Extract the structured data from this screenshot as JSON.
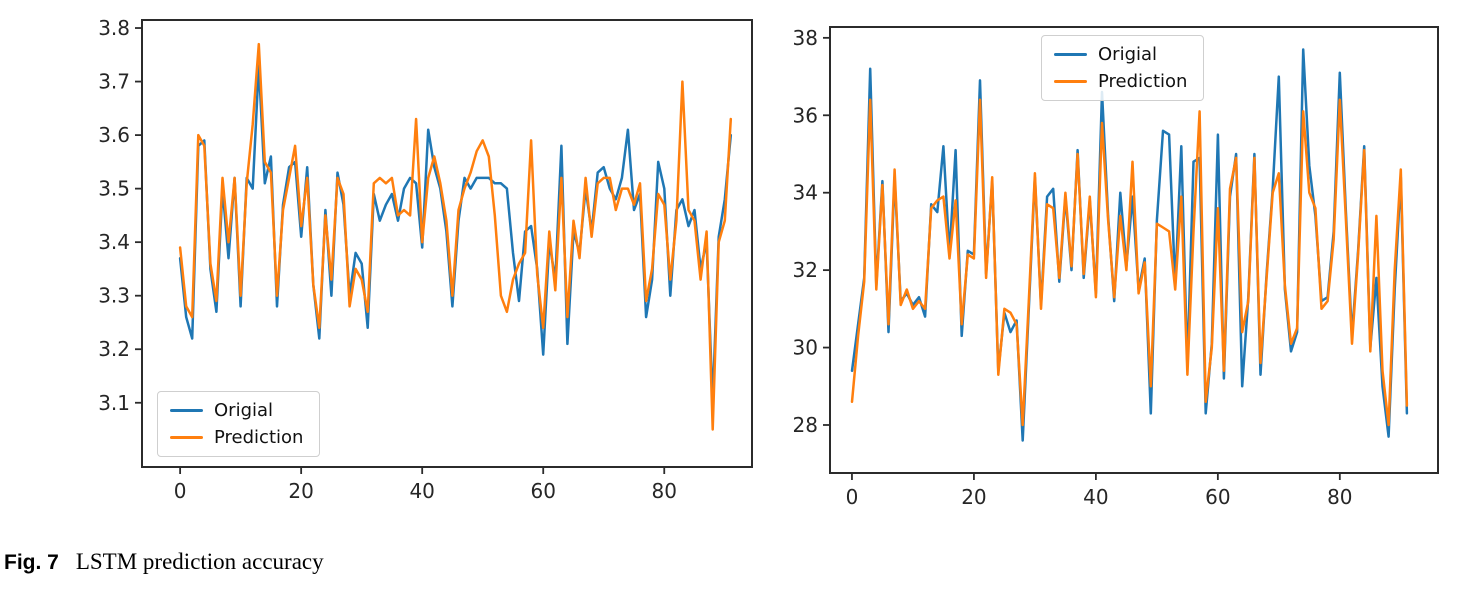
{
  "figure": {
    "caption_label": "Fig. 7",
    "caption_text": "LSTM prediction accuracy"
  },
  "colors": {
    "original_line": "#1f77b4",
    "prediction_line": "#ff7f0e",
    "axis_frame": "#2b2b2b",
    "tick_label": "#262626",
    "legend_border": "#cfcfcf",
    "background": "#ffffff"
  },
  "chart_data": [
    {
      "type": "line",
      "title": "",
      "xlabel": "",
      "ylabel": "",
      "grid": false,
      "xlim": [
        -6.3,
        94.5
      ],
      "ylim": [
        2.98,
        3.815
      ],
      "xticks": [
        "0",
        "20",
        "40",
        "60",
        "80"
      ],
      "yticks": [
        "3.1",
        "3.2",
        "3.3",
        "3.4",
        "3.5",
        "3.6",
        "3.7",
        "3.8"
      ],
      "legend_position": "lower left",
      "x_start": 0,
      "x_step": 1,
      "series": [
        {
          "name": "Origial",
          "color_key": "original_line",
          "values": [
            3.37,
            3.26,
            3.22,
            3.58,
            3.59,
            3.35,
            3.27,
            3.5,
            3.37,
            3.52,
            3.28,
            3.52,
            3.5,
            3.73,
            3.51,
            3.56,
            3.28,
            3.47,
            3.54,
            3.55,
            3.41,
            3.54,
            3.32,
            3.22,
            3.46,
            3.3,
            3.53,
            3.47,
            3.3,
            3.38,
            3.36,
            3.24,
            3.49,
            3.44,
            3.47,
            3.49,
            3.44,
            3.5,
            3.52,
            3.51,
            3.39,
            3.61,
            3.54,
            3.5,
            3.42,
            3.28,
            3.44,
            3.52,
            3.5,
            3.52,
            3.52,
            3.52,
            3.51,
            3.51,
            3.5,
            3.38,
            3.29,
            3.42,
            3.43,
            3.35,
            3.19,
            3.4,
            3.33,
            3.58,
            3.21,
            3.42,
            3.38,
            3.5,
            3.42,
            3.53,
            3.54,
            3.5,
            3.48,
            3.52,
            3.61,
            3.46,
            3.49,
            3.26,
            3.33,
            3.55,
            3.5,
            3.3,
            3.46,
            3.48,
            3.43,
            3.46,
            3.35,
            3.4,
            3.1,
            3.41,
            3.48,
            3.6
          ]
        },
        {
          "name": "Prediction",
          "color_key": "prediction_line",
          "values": [
            3.39,
            3.28,
            3.26,
            3.6,
            3.58,
            3.36,
            3.29,
            3.52,
            3.4,
            3.52,
            3.3,
            3.51,
            3.62,
            3.77,
            3.55,
            3.53,
            3.3,
            3.46,
            3.52,
            3.58,
            3.43,
            3.52,
            3.32,
            3.24,
            3.45,
            3.33,
            3.52,
            3.49,
            3.28,
            3.35,
            3.33,
            3.27,
            3.51,
            3.52,
            3.51,
            3.52,
            3.45,
            3.46,
            3.45,
            3.63,
            3.4,
            3.52,
            3.56,
            3.51,
            3.44,
            3.3,
            3.46,
            3.5,
            3.53,
            3.57,
            3.59,
            3.56,
            3.45,
            3.3,
            3.27,
            3.33,
            3.36,
            3.38,
            3.59,
            3.34,
            3.24,
            3.42,
            3.31,
            3.52,
            3.26,
            3.44,
            3.37,
            3.52,
            3.41,
            3.51,
            3.52,
            3.52,
            3.46,
            3.5,
            3.5,
            3.47,
            3.51,
            3.29,
            3.35,
            3.49,
            3.47,
            3.33,
            3.44,
            3.7,
            3.46,
            3.44,
            3.33,
            3.42,
            3.05,
            3.4,
            3.44,
            3.63
          ]
        }
      ]
    },
    {
      "type": "line",
      "title": "",
      "xlabel": "",
      "ylabel": "",
      "grid": false,
      "xlim": [
        -3.6,
        96.1
      ],
      "ylim": [
        26.76,
        38.28
      ],
      "xticks": [
        "0",
        "20",
        "40",
        "60",
        "80"
      ],
      "yticks": [
        "28",
        "30",
        "32",
        "34",
        "36",
        "38"
      ],
      "legend_position": "upper center",
      "x_start": 0,
      "x_step": 1,
      "series": [
        {
          "name": "Origial",
          "color_key": "original_line",
          "values": [
            29.4,
            30.6,
            31.8,
            37.2,
            31.6,
            34.3,
            30.4,
            34.4,
            31.2,
            31.4,
            31.1,
            31.3,
            30.8,
            33.7,
            33.5,
            35.2,
            32.4,
            35.1,
            30.3,
            32.5,
            32.4,
            36.9,
            31.9,
            34.3,
            29.4,
            30.9,
            30.4,
            30.7,
            27.6,
            31.0,
            34.4,
            31.1,
            33.9,
            34.1,
            31.7,
            33.9,
            32.0,
            35.1,
            31.8,
            33.8,
            31.4,
            36.6,
            33.4,
            31.2,
            34.0,
            32.1,
            33.9,
            31.5,
            32.3,
            28.3,
            33.3,
            35.6,
            35.5,
            31.6,
            35.2,
            29.5,
            34.8,
            34.9,
            28.3,
            30.1,
            35.5,
            29.2,
            33.9,
            35.0,
            29.0,
            31.3,
            35.0,
            29.3,
            31.9,
            34.1,
            37.0,
            31.5,
            29.9,
            30.4,
            37.7,
            34.7,
            33.4,
            31.2,
            31.3,
            33.0,
            37.1,
            33.5,
            30.3,
            32.5,
            35.2,
            30.0,
            31.8,
            29.0,
            27.7,
            31.5,
            34.4,
            28.3
          ]
        },
        {
          "name": "Prediction",
          "color_key": "prediction_line",
          "values": [
            28.6,
            30.3,
            31.7,
            36.4,
            31.5,
            34.2,
            30.6,
            34.6,
            31.1,
            31.5,
            31.0,
            31.2,
            31.0,
            33.6,
            33.8,
            33.9,
            32.3,
            33.8,
            30.6,
            32.4,
            32.3,
            36.4,
            31.8,
            34.4,
            29.3,
            31.0,
            30.9,
            30.6,
            28.0,
            31.2,
            34.5,
            31.0,
            33.7,
            33.6,
            31.8,
            34.0,
            32.1,
            35.0,
            31.9,
            33.9,
            31.3,
            35.8,
            33.3,
            31.3,
            33.4,
            32.0,
            34.8,
            31.4,
            32.2,
            29.0,
            33.2,
            33.1,
            33.0,
            31.5,
            33.9,
            29.3,
            33.0,
            36.1,
            28.6,
            30.0,
            33.6,
            29.4,
            34.1,
            34.9,
            30.4,
            31.2,
            34.9,
            29.6,
            31.8,
            34.0,
            34.5,
            31.6,
            30.1,
            30.5,
            36.1,
            34.0,
            33.6,
            31.0,
            31.2,
            32.8,
            36.4,
            33.3,
            30.1,
            32.4,
            35.1,
            29.9,
            33.4,
            29.4,
            28.0,
            32.0,
            34.6,
            28.5
          ]
        }
      ]
    }
  ]
}
